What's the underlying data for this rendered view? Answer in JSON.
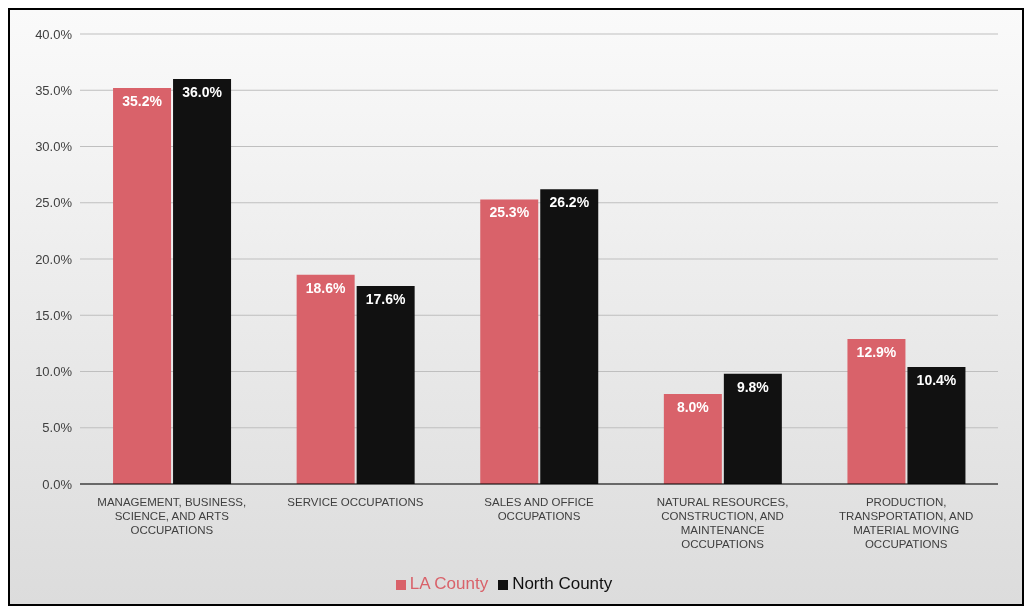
{
  "chart_data": {
    "type": "bar",
    "categories": [
      "MANAGEMENT, BUSINESS, SCIENCE, AND ARTS OCCUPATIONS",
      "SERVICE OCCUPATIONS",
      "SALES AND OFFICE OCCUPATIONS",
      "NATURAL RESOURCES, CONSTRUCTION, AND MAINTENANCE OCCUPATIONS",
      "PRODUCTION, TRANSPORTATION, AND MATERIAL MOVING OCCUPATIONS"
    ],
    "series": [
      {
        "name": "LA County",
        "color": "#d9626a",
        "values": [
          35.2,
          18.6,
          25.3,
          8.0,
          12.9
        ],
        "value_labels": [
          "35.2%",
          "18.6%",
          "25.3%",
          "8.0%",
          "12.9%"
        ]
      },
      {
        "name": "North County",
        "color": "#111111",
        "values": [
          36.0,
          17.6,
          26.2,
          9.8,
          10.4
        ],
        "value_labels": [
          "36.0%",
          "17.6%",
          "26.2%",
          "9.8%",
          "10.4%"
        ]
      }
    ],
    "ylim": [
      0,
      40
    ],
    "yticks": [
      {
        "value": 0,
        "label": "0.0%"
      },
      {
        "value": 5,
        "label": "5.0%"
      },
      {
        "value": 10,
        "label": "10.0%"
      },
      {
        "value": 15,
        "label": "15.0%"
      },
      {
        "value": 20,
        "label": "20.0%"
      },
      {
        "value": 25,
        "label": "25.0%"
      },
      {
        "value": 30,
        "label": "30.0%"
      },
      {
        "value": 35,
        "label": "35.0%"
      },
      {
        "value": 40,
        "label": "40.0%"
      }
    ],
    "grid": "y",
    "legend": "bottom"
  }
}
